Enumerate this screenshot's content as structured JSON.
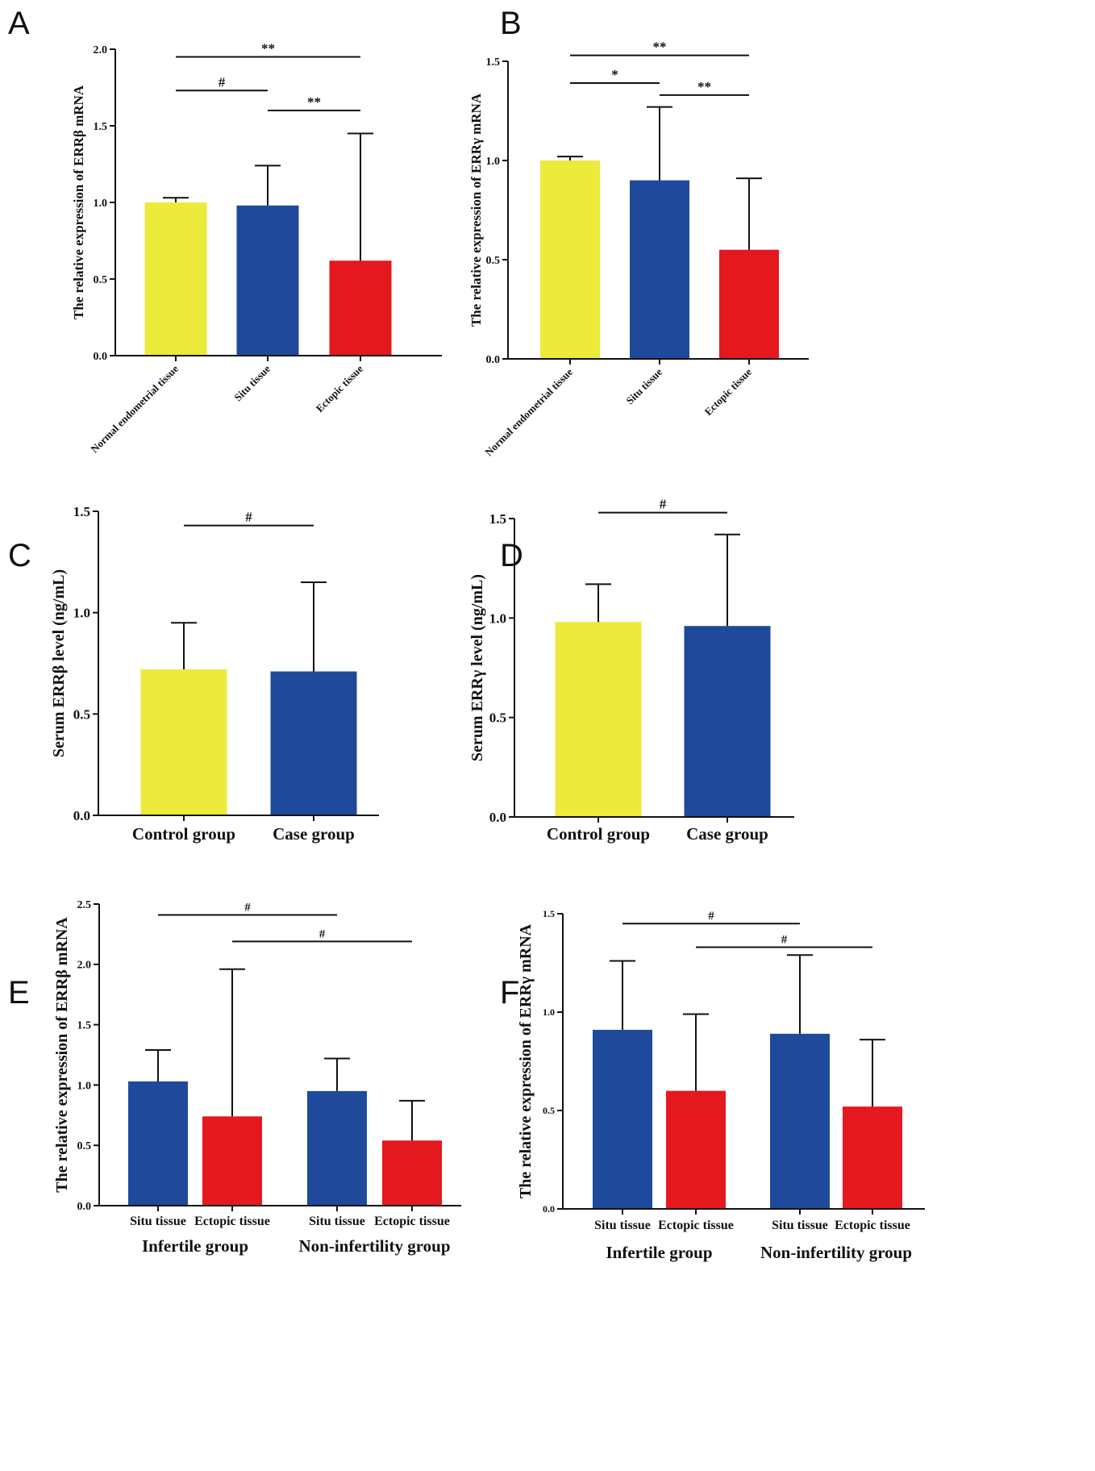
{
  "colors": {
    "yellow": "#ECEA3A",
    "blue": "#1F4A9C",
    "red": "#E4191E",
    "axis": "#111111"
  },
  "chart_data": [
    {
      "panel": "A",
      "type": "bar",
      "categories": [
        "Normal endometrial tissue",
        "Situ tissue",
        "Ectopic tissue"
      ],
      "values": [
        1.0,
        0.98,
        0.62
      ],
      "errors": [
        0.03,
        0.26,
        0.83
      ],
      "bar_colors": [
        "yellow",
        "blue",
        "red"
      ],
      "ylabel": "The relative expression of ERRβ mRNA",
      "ylim": [
        0,
        2.0
      ],
      "yticks": [
        "0.0",
        "0.5",
        "1.0",
        "1.5",
        "2.0"
      ],
      "significance": [
        {
          "from": 0,
          "to": 2,
          "label": "**",
          "y": 1.95
        },
        {
          "from": 0,
          "to": 1,
          "label": "#",
          "y": 1.73
        },
        {
          "from": 1,
          "to": 2,
          "label": "**",
          "y": 1.6
        }
      ]
    },
    {
      "panel": "B",
      "type": "bar",
      "categories": [
        "Normal endometrial tissue",
        "Situ tissue",
        "Ectopic tissue"
      ],
      "values": [
        1.0,
        0.9,
        0.55
      ],
      "errors": [
        0.02,
        0.37,
        0.36
      ],
      "bar_colors": [
        "yellow",
        "blue",
        "red"
      ],
      "ylabel": "The relative expression of ERRγ mRNA",
      "ylim": [
        0,
        1.5
      ],
      "yticks": [
        "0.0",
        "0.5",
        "1.0",
        "1.5"
      ],
      "significance": [
        {
          "from": 0,
          "to": 2,
          "label": "**",
          "y": 1.53
        },
        {
          "from": 0,
          "to": 1,
          "label": "*",
          "y": 1.39
        },
        {
          "from": 1,
          "to": 2,
          "label": "**",
          "y": 1.33
        }
      ]
    },
    {
      "panel": "C",
      "type": "bar",
      "categories": [
        "Control group",
        "Case group"
      ],
      "values": [
        0.72,
        0.71
      ],
      "errors": [
        0.23,
        0.44
      ],
      "bar_colors": [
        "yellow",
        "blue"
      ],
      "ylabel": "Serum ERRβ level (ng/mL)",
      "ylim": [
        0,
        1.5
      ],
      "yticks": [
        "0.0",
        "0.5",
        "1.0",
        "1.5"
      ],
      "significance": [
        {
          "from": 0,
          "to": 1,
          "label": "#",
          "y": 1.43
        }
      ]
    },
    {
      "panel": "D",
      "type": "bar",
      "categories": [
        "Control group",
        "Case group"
      ],
      "values": [
        0.98,
        0.96
      ],
      "errors": [
        0.19,
        0.46
      ],
      "bar_colors": [
        "yellow",
        "blue"
      ],
      "ylabel": "Serum ERRγ level (ng/mL)",
      "ylim": [
        0,
        1.5
      ],
      "yticks": [
        "0.0",
        "0.5",
        "1.0",
        "1.5"
      ],
      "significance": [
        {
          "from": 0,
          "to": 1,
          "label": "#",
          "y": 1.53
        }
      ]
    },
    {
      "panel": "E",
      "type": "bar",
      "categories": [
        "Situ tissue",
        "Ectopic tissue",
        "Situ tissue",
        "Ectopic tissue"
      ],
      "groups": [
        "Infertile group",
        "Non-infertility group"
      ],
      "values": [
        1.03,
        0.74,
        0.95,
        0.54
      ],
      "errors": [
        0.26,
        1.22,
        0.27,
        0.33
      ],
      "bar_colors": [
        "blue",
        "red",
        "blue",
        "red"
      ],
      "ylabel": "The relative expression of ERRβ mRNA",
      "ylim": [
        0,
        2.5
      ],
      "yticks": [
        "0.0",
        "0.5",
        "1.0",
        "1.5",
        "2.0",
        "2.5"
      ],
      "significance": [
        {
          "from": 0,
          "to": 2,
          "label": "#",
          "y": 2.41
        },
        {
          "from": 1,
          "to": 3,
          "label": "#",
          "y": 2.19
        }
      ]
    },
    {
      "panel": "F",
      "type": "bar",
      "categories": [
        "Situ tissue",
        "Ectopic tissue",
        "Situ tissue",
        "Ectopic tissue"
      ],
      "groups": [
        "Infertile group",
        "Non-infertility group"
      ],
      "values": [
        0.91,
        0.6,
        0.89,
        0.52
      ],
      "errors": [
        0.35,
        0.39,
        0.4,
        0.34
      ],
      "bar_colors": [
        "blue",
        "red",
        "blue",
        "red"
      ],
      "ylabel": "The relative expression of ERRγ mRNA",
      "ylim": [
        0,
        1.5
      ],
      "yticks": [
        "0.0",
        "0.5",
        "1.0",
        "1.5"
      ],
      "significance": [
        {
          "from": 0,
          "to": 2,
          "label": "#",
          "y": 1.45
        },
        {
          "from": 1,
          "to": 3,
          "label": "#",
          "y": 1.33
        }
      ]
    }
  ]
}
